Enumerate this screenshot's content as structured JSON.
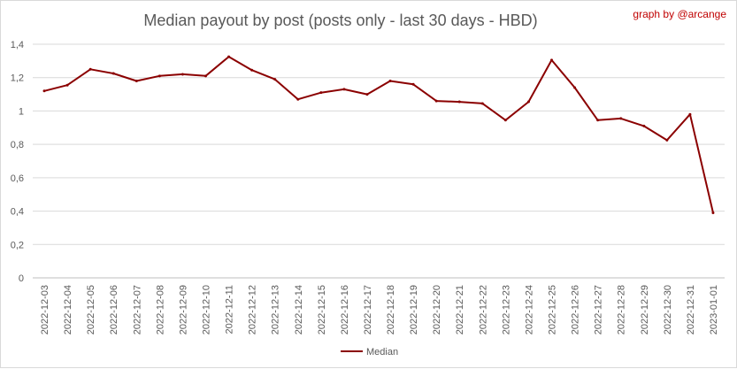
{
  "chart_data": {
    "type": "line",
    "title": "Median payout by post (posts only - last 30 days - HBD)",
    "credit": "graph by @arcange",
    "xlabel": "",
    "ylabel": "",
    "ylim": [
      0,
      1.4
    ],
    "yticks": [
      "0",
      "0,2",
      "0,4",
      "0,6",
      "0,8",
      "1",
      "1,2",
      "1,4"
    ],
    "grid": true,
    "legend_position": "bottom",
    "categories": [
      "2022-12-03",
      "2022-12-04",
      "2022-12-05",
      "2022-12-06",
      "2022-12-07",
      "2022-12-08",
      "2022-12-09",
      "2022-12-10",
      "2022-12-11",
      "2022-12-12",
      "2022-12-13",
      "2022-12-14",
      "2022-12-15",
      "2022-12-16",
      "2022-12-17",
      "2022-12-18",
      "2022-12-19",
      "2022-12-20",
      "2022-12-21",
      "2022-12-22",
      "2022-12-23",
      "2022-12-24",
      "2022-12-25",
      "2022-12-26",
      "2022-12-27",
      "2022-12-28",
      "2022-12-29",
      "2022-12-30",
      "2022-12-31",
      "2023-01-01"
    ],
    "series": [
      {
        "name": "Median",
        "color": "#8b0000",
        "values": [
          1.12,
          1.155,
          1.25,
          1.225,
          1.18,
          1.21,
          1.22,
          1.21,
          1.325,
          1.245,
          1.19,
          1.07,
          1.11,
          1.13,
          1.1,
          1.18,
          1.16,
          1.06,
          1.055,
          1.045,
          0.945,
          1.055,
          1.305,
          1.14,
          0.945,
          0.955,
          0.91,
          0.825,
          0.98,
          0.39
        ]
      }
    ]
  }
}
